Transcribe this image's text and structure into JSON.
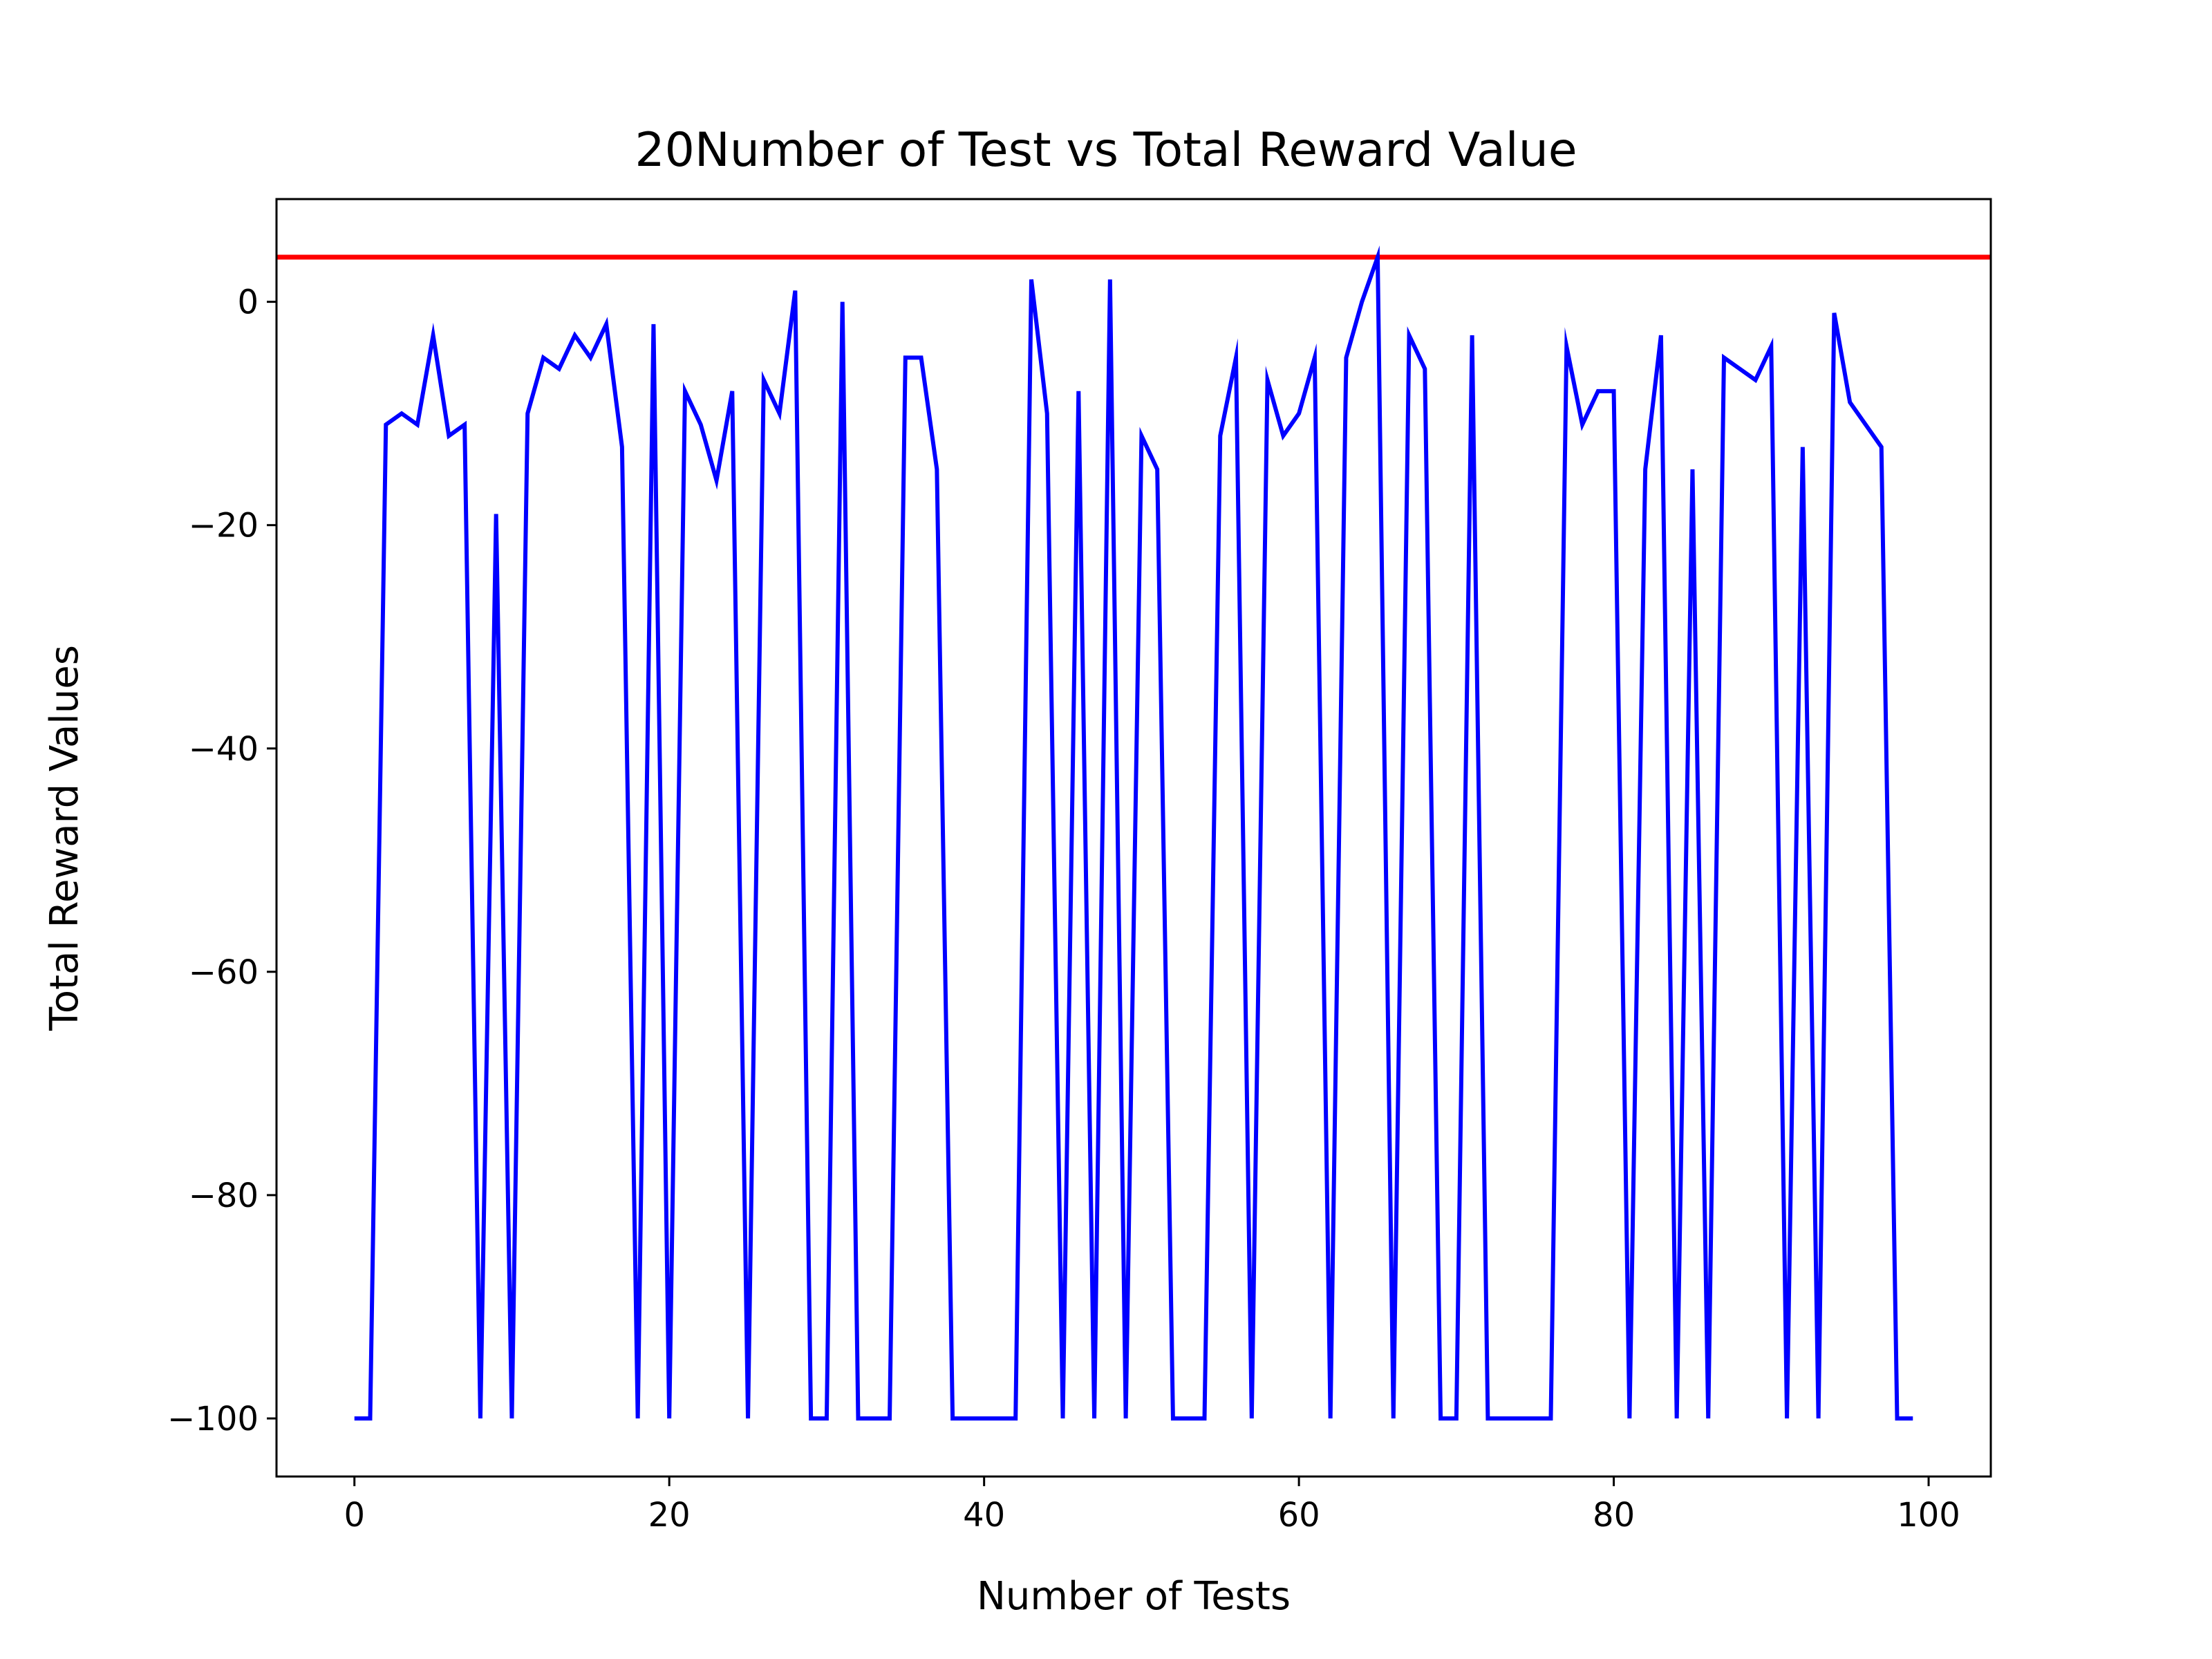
{
  "chart_data": {
    "type": "line",
    "title": "20Number of Test vs Total Reward Value",
    "xlabel": "Number of Tests",
    "ylabel": "Total Reward Values",
    "xlim": [
      -4.95,
      103.95
    ],
    "ylim": [
      -105.2,
      9.2
    ],
    "xticks": [
      0,
      20,
      40,
      60,
      80,
      100
    ],
    "yticks": [
      0,
      -20,
      -40,
      -60,
      -80,
      -100
    ],
    "xtick_labels": [
      "0",
      "20",
      "40",
      "60",
      "80",
      "100"
    ],
    "ytick_labels": [
      "0",
      "−20",
      "−40",
      "−60",
      "−80",
      "−100"
    ],
    "grid": false,
    "series": [
      {
        "color": "#0000ff",
        "x": [
          0,
          1,
          2,
          3,
          4,
          5,
          6,
          7,
          8,
          9,
          10,
          11,
          12,
          13,
          14,
          15,
          16,
          17,
          18,
          19,
          20,
          21,
          22,
          23,
          24,
          25,
          26,
          27,
          28,
          29,
          30,
          31,
          32,
          33,
          34,
          35,
          36,
          37,
          38,
          39,
          40,
          41,
          42,
          43,
          44,
          45,
          46,
          47,
          48,
          49,
          50,
          51,
          52,
          53,
          54,
          55,
          56,
          57,
          58,
          59,
          60,
          61,
          62,
          63,
          64,
          65,
          66,
          67,
          68,
          69,
          70,
          71,
          72,
          73,
          74,
          75,
          76,
          77,
          78,
          79,
          80,
          81,
          82,
          83,
          84,
          85,
          86,
          87,
          88,
          89,
          90,
          91,
          92,
          93,
          94,
          95,
          96,
          97,
          98,
          99
        ],
        "y": [
          -100,
          -100,
          -11,
          -10,
          -11,
          -3,
          -12,
          -11,
          -100,
          -19,
          -100,
          -10,
          -5,
          -6,
          -3,
          -5,
          -2,
          -13,
          -100,
          -2,
          -100,
          -8,
          -11,
          -16,
          -8,
          -100,
          -7,
          -10,
          1,
          -100,
          -100,
          0,
          -100,
          -100,
          -100,
          -5,
          -5,
          -15,
          -100,
          -100,
          -100,
          -100,
          -100,
          2,
          -10,
          -100,
          -8,
          -100,
          2,
          -100,
          -12,
          -15,
          -100,
          -100,
          -100,
          -12,
          -5,
          -100,
          -7,
          -12,
          -10,
          -5,
          -100,
          -5,
          0,
          4,
          -100,
          -3,
          -6,
          -100,
          -100,
          -3,
          -100,
          -100,
          -100,
          -100,
          -100,
          -4,
          -11,
          -8,
          -8,
          -100,
          -15,
          -3,
          -100,
          -15,
          -100,
          -5,
          -6,
          -7,
          -4,
          -100,
          -13,
          -100,
          -1,
          -9,
          -11,
          -13,
          -100,
          -100
        ]
      }
    ],
    "reference_line": {
      "y": 4,
      "color": "#ff0000"
    }
  }
}
